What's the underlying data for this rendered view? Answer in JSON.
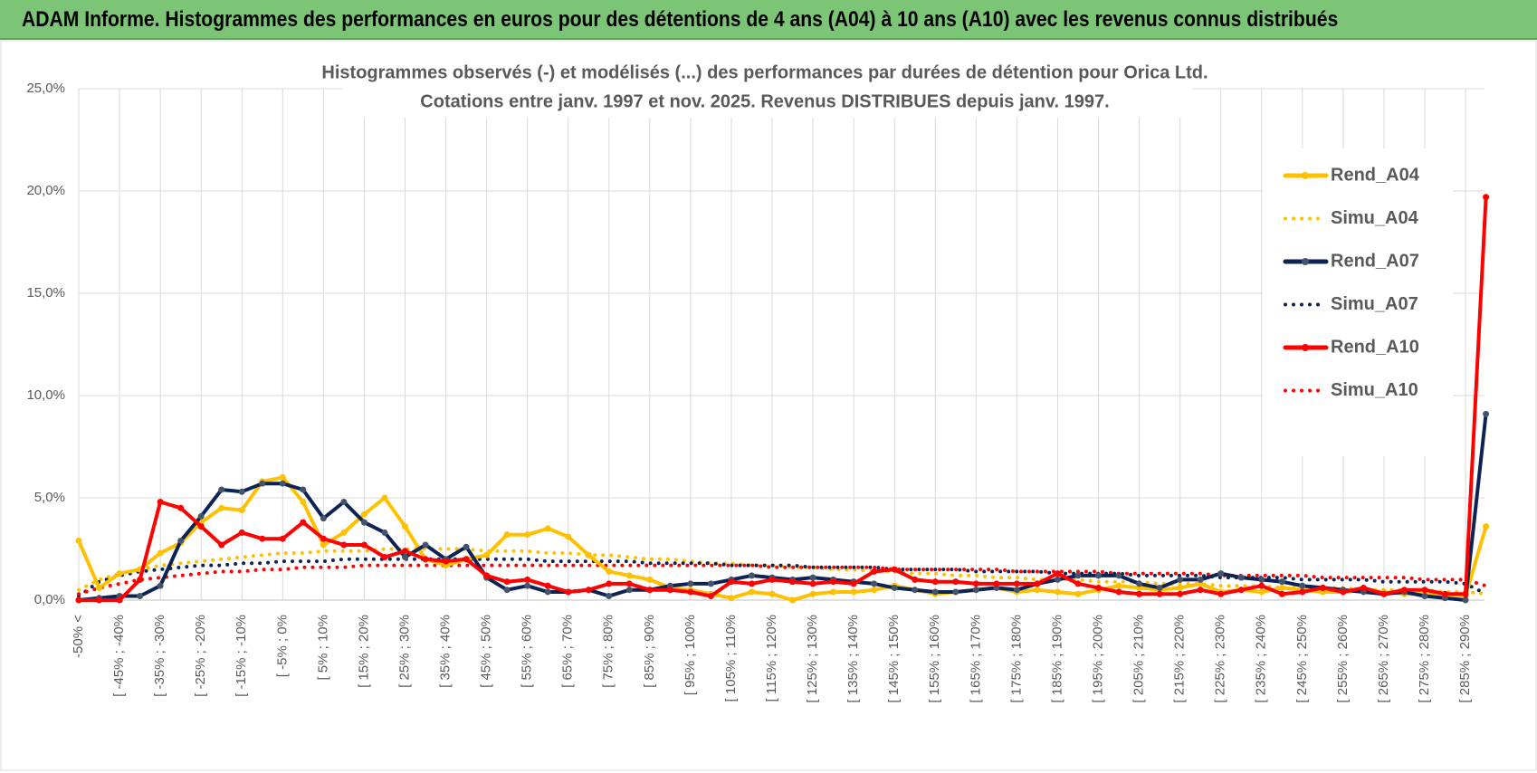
{
  "header": {
    "title": "ADAM Informe. Histogrammes des performances en euros pour des détentions de 4 ans (A04) à 10 ans (A10) avec les revenus connus distribués"
  },
  "chart_data": {
    "type": "line",
    "title": "Histogrammes observés (-) et modélisés (...) des performances par durées de détention pour Orica Ltd.",
    "subtitle": "Cotations entre janv. 1997 et nov. 2025. Revenus DISTRIBUES depuis janv. 1997.",
    "categories": [
      "-50% <",
      null,
      "[ -45% ; -40%",
      null,
      "[ -35% ; -30%",
      null,
      "[ -25% ; -20%",
      null,
      "[ -15% ; -10%",
      null,
      "[ -5% ; 0%",
      null,
      "[ 5% ; 10%",
      null,
      "[ 15% ; 20%",
      null,
      "[ 25% ; 30%",
      null,
      "[ 35% ; 40%",
      null,
      "[ 45% ; 50%",
      null,
      "[ 55% ; 60%",
      null,
      "[ 65% ; 70%",
      null,
      "[ 75% ; 80%",
      null,
      "[ 85% ; 90%",
      null,
      "[ 95% ; 100%",
      null,
      "[ 105% ; 110%",
      null,
      "[ 115% ; 120%",
      null,
      "[ 125% ; 130%",
      null,
      "[ 135% ; 140%",
      null,
      "[ 145% ; 150%",
      null,
      "[ 155% ; 160%",
      null,
      "[ 165% ; 170%",
      null,
      "[ 175% ; 180%",
      null,
      "[ 185% ; 190%",
      null,
      "[ 195% ; 200%",
      null,
      "[ 205% ; 210%",
      null,
      "[ 215% ; 220%",
      null,
      "[ 225% ; 230%",
      null,
      "[ 235% ; 240%",
      null,
      "[ 245% ; 250%",
      null,
      "[ 255% ; 260%",
      null,
      "[ 265% ; 270%",
      null,
      "[ 275% ; 280%",
      null,
      "[ 285% ; 290%",
      null
    ],
    "ylim": [
      0,
      25
    ],
    "yticks": [
      {
        "value": 0,
        "label": "0,0%"
      },
      {
        "value": 5,
        "label": "5,0%"
      },
      {
        "value": 10,
        "label": "10,0%"
      },
      {
        "value": 15,
        "label": "15,0%"
      },
      {
        "value": 20,
        "label": "20,0%"
      },
      {
        "value": 25,
        "label": "25,0%"
      }
    ],
    "grid": true,
    "legend": "right",
    "series": [
      {
        "name": "Rend_A04",
        "color": "#ffc000",
        "style": "solid",
        "values": [
          2.9,
          0.6,
          1.3,
          1.5,
          2.3,
          2.8,
          3.8,
          4.5,
          4.4,
          5.8,
          6.0,
          4.8,
          2.7,
          3.3,
          4.2,
          5.0,
          3.6,
          2.0,
          1.7,
          2.0,
          2.2,
          3.2,
          3.2,
          3.5,
          3.1,
          2.2,
          1.4,
          1.2,
          1.0,
          0.6,
          0.5,
          0.3,
          0.1,
          0.4,
          0.3,
          0.0,
          0.3,
          0.4,
          0.4,
          0.5,
          0.7,
          0.5,
          0.3,
          0.4,
          0.5,
          0.6,
          0.4,
          0.5,
          0.4,
          0.3,
          0.5,
          0.7,
          0.6,
          0.5,
          0.6,
          0.8,
          0.4,
          0.5,
          0.4,
          0.6,
          0.5,
          0.4,
          0.4,
          0.5,
          0.4,
          0.3,
          0.3,
          0.3,
          0.2,
          3.6
        ]
      },
      {
        "name": "Simu_A04",
        "color": "#ffc000",
        "style": "dotted",
        "values": [
          0.5,
          1.0,
          1.3,
          1.5,
          1.7,
          1.8,
          1.9,
          2.0,
          2.1,
          2.2,
          2.3,
          2.3,
          2.4,
          2.4,
          2.4,
          2.5,
          2.5,
          2.5,
          2.5,
          2.5,
          2.4,
          2.4,
          2.4,
          2.3,
          2.3,
          2.2,
          2.2,
          2.1,
          2.0,
          2.0,
          1.9,
          1.8,
          1.8,
          1.7,
          1.7,
          1.6,
          1.6,
          1.5,
          1.5,
          1.4,
          1.4,
          1.3,
          1.3,
          1.2,
          1.2,
          1.1,
          1.1,
          1.0,
          1.0,
          1.0,
          0.9,
          0.9,
          0.9,
          0.8,
          0.8,
          0.8,
          0.7,
          0.7,
          0.7,
          0.6,
          0.6,
          0.6,
          0.6,
          0.5,
          0.5,
          0.5,
          0.5,
          0.4,
          0.4,
          0.3
        ]
      },
      {
        "name": "Rend_A07",
        "color": "#0d2356",
        "style": "solid",
        "values": [
          0.0,
          0.1,
          0.2,
          0.2,
          0.7,
          2.9,
          4.1,
          5.4,
          5.3,
          5.7,
          5.7,
          5.4,
          4.0,
          4.8,
          3.8,
          3.3,
          2.1,
          2.7,
          2.0,
          2.6,
          1.1,
          0.5,
          0.7,
          0.4,
          0.4,
          0.5,
          0.2,
          0.5,
          0.5,
          0.7,
          0.8,
          0.8,
          1.0,
          1.2,
          1.1,
          1.0,
          1.1,
          1.0,
          0.9,
          0.8,
          0.6,
          0.5,
          0.4,
          0.4,
          0.5,
          0.6,
          0.5,
          0.8,
          1.0,
          1.2,
          1.2,
          1.2,
          0.8,
          0.6,
          1.0,
          1.0,
          1.3,
          1.1,
          1.0,
          0.9,
          0.7,
          0.6,
          0.5,
          0.4,
          0.3,
          0.4,
          0.2,
          0.1,
          0.0,
          9.1
        ]
      },
      {
        "name": "Simu_A07",
        "color": "#0d2356",
        "style": "dotted",
        "values": [
          0.2,
          0.9,
          1.2,
          1.4,
          1.5,
          1.6,
          1.7,
          1.7,
          1.8,
          1.8,
          1.9,
          1.9,
          1.9,
          2.0,
          2.0,
          2.0,
          2.0,
          2.0,
          2.0,
          2.0,
          2.0,
          2.0,
          2.0,
          1.9,
          1.9,
          1.9,
          1.9,
          1.9,
          1.8,
          1.8,
          1.8,
          1.8,
          1.7,
          1.7,
          1.7,
          1.7,
          1.6,
          1.6,
          1.6,
          1.6,
          1.5,
          1.5,
          1.5,
          1.5,
          1.4,
          1.4,
          1.4,
          1.4,
          1.3,
          1.3,
          1.3,
          1.3,
          1.2,
          1.2,
          1.2,
          1.2,
          1.1,
          1.1,
          1.1,
          1.1,
          1.0,
          1.0,
          1.0,
          1.0,
          0.9,
          0.9,
          0.9,
          0.9,
          0.8,
          0.3
        ]
      },
      {
        "name": "Rend_A10",
        "color": "#ff0000",
        "style": "solid",
        "values": [
          0.0,
          0.0,
          0.0,
          1.0,
          4.8,
          4.5,
          3.6,
          2.7,
          3.3,
          3.0,
          3.0,
          3.8,
          3.0,
          2.7,
          2.7,
          2.1,
          2.4,
          2.0,
          1.9,
          2.0,
          1.2,
          0.9,
          1.0,
          0.7,
          0.4,
          0.5,
          0.8,
          0.8,
          0.5,
          0.5,
          0.4,
          0.2,
          0.9,
          0.8,
          1.0,
          0.9,
          0.8,
          0.9,
          0.8,
          1.4,
          1.5,
          1.0,
          0.9,
          0.9,
          0.8,
          0.8,
          0.8,
          0.8,
          1.3,
          0.8,
          0.6,
          0.4,
          0.3,
          0.3,
          0.3,
          0.5,
          0.3,
          0.5,
          0.7,
          0.3,
          0.4,
          0.6,
          0.4,
          0.6,
          0.3,
          0.5,
          0.5,
          0.3,
          0.3,
          19.7
        ]
      },
      {
        "name": "Simu_A10",
        "color": "#ff0000",
        "style": "dotted",
        "values": [
          0.3,
          0.6,
          0.8,
          1.0,
          1.1,
          1.2,
          1.3,
          1.4,
          1.4,
          1.5,
          1.5,
          1.6,
          1.6,
          1.6,
          1.7,
          1.7,
          1.7,
          1.7,
          1.7,
          1.7,
          1.7,
          1.7,
          1.7,
          1.7,
          1.7,
          1.7,
          1.7,
          1.7,
          1.7,
          1.7,
          1.7,
          1.7,
          1.7,
          1.7,
          1.6,
          1.6,
          1.6,
          1.6,
          1.6,
          1.6,
          1.5,
          1.5,
          1.5,
          1.5,
          1.5,
          1.5,
          1.4,
          1.4,
          1.4,
          1.4,
          1.4,
          1.3,
          1.3,
          1.3,
          1.3,
          1.3,
          1.2,
          1.2,
          1.2,
          1.2,
          1.2,
          1.1,
          1.1,
          1.1,
          1.1,
          1.1,
          1.0,
          1.0,
          1.0,
          0.7
        ]
      }
    ]
  }
}
